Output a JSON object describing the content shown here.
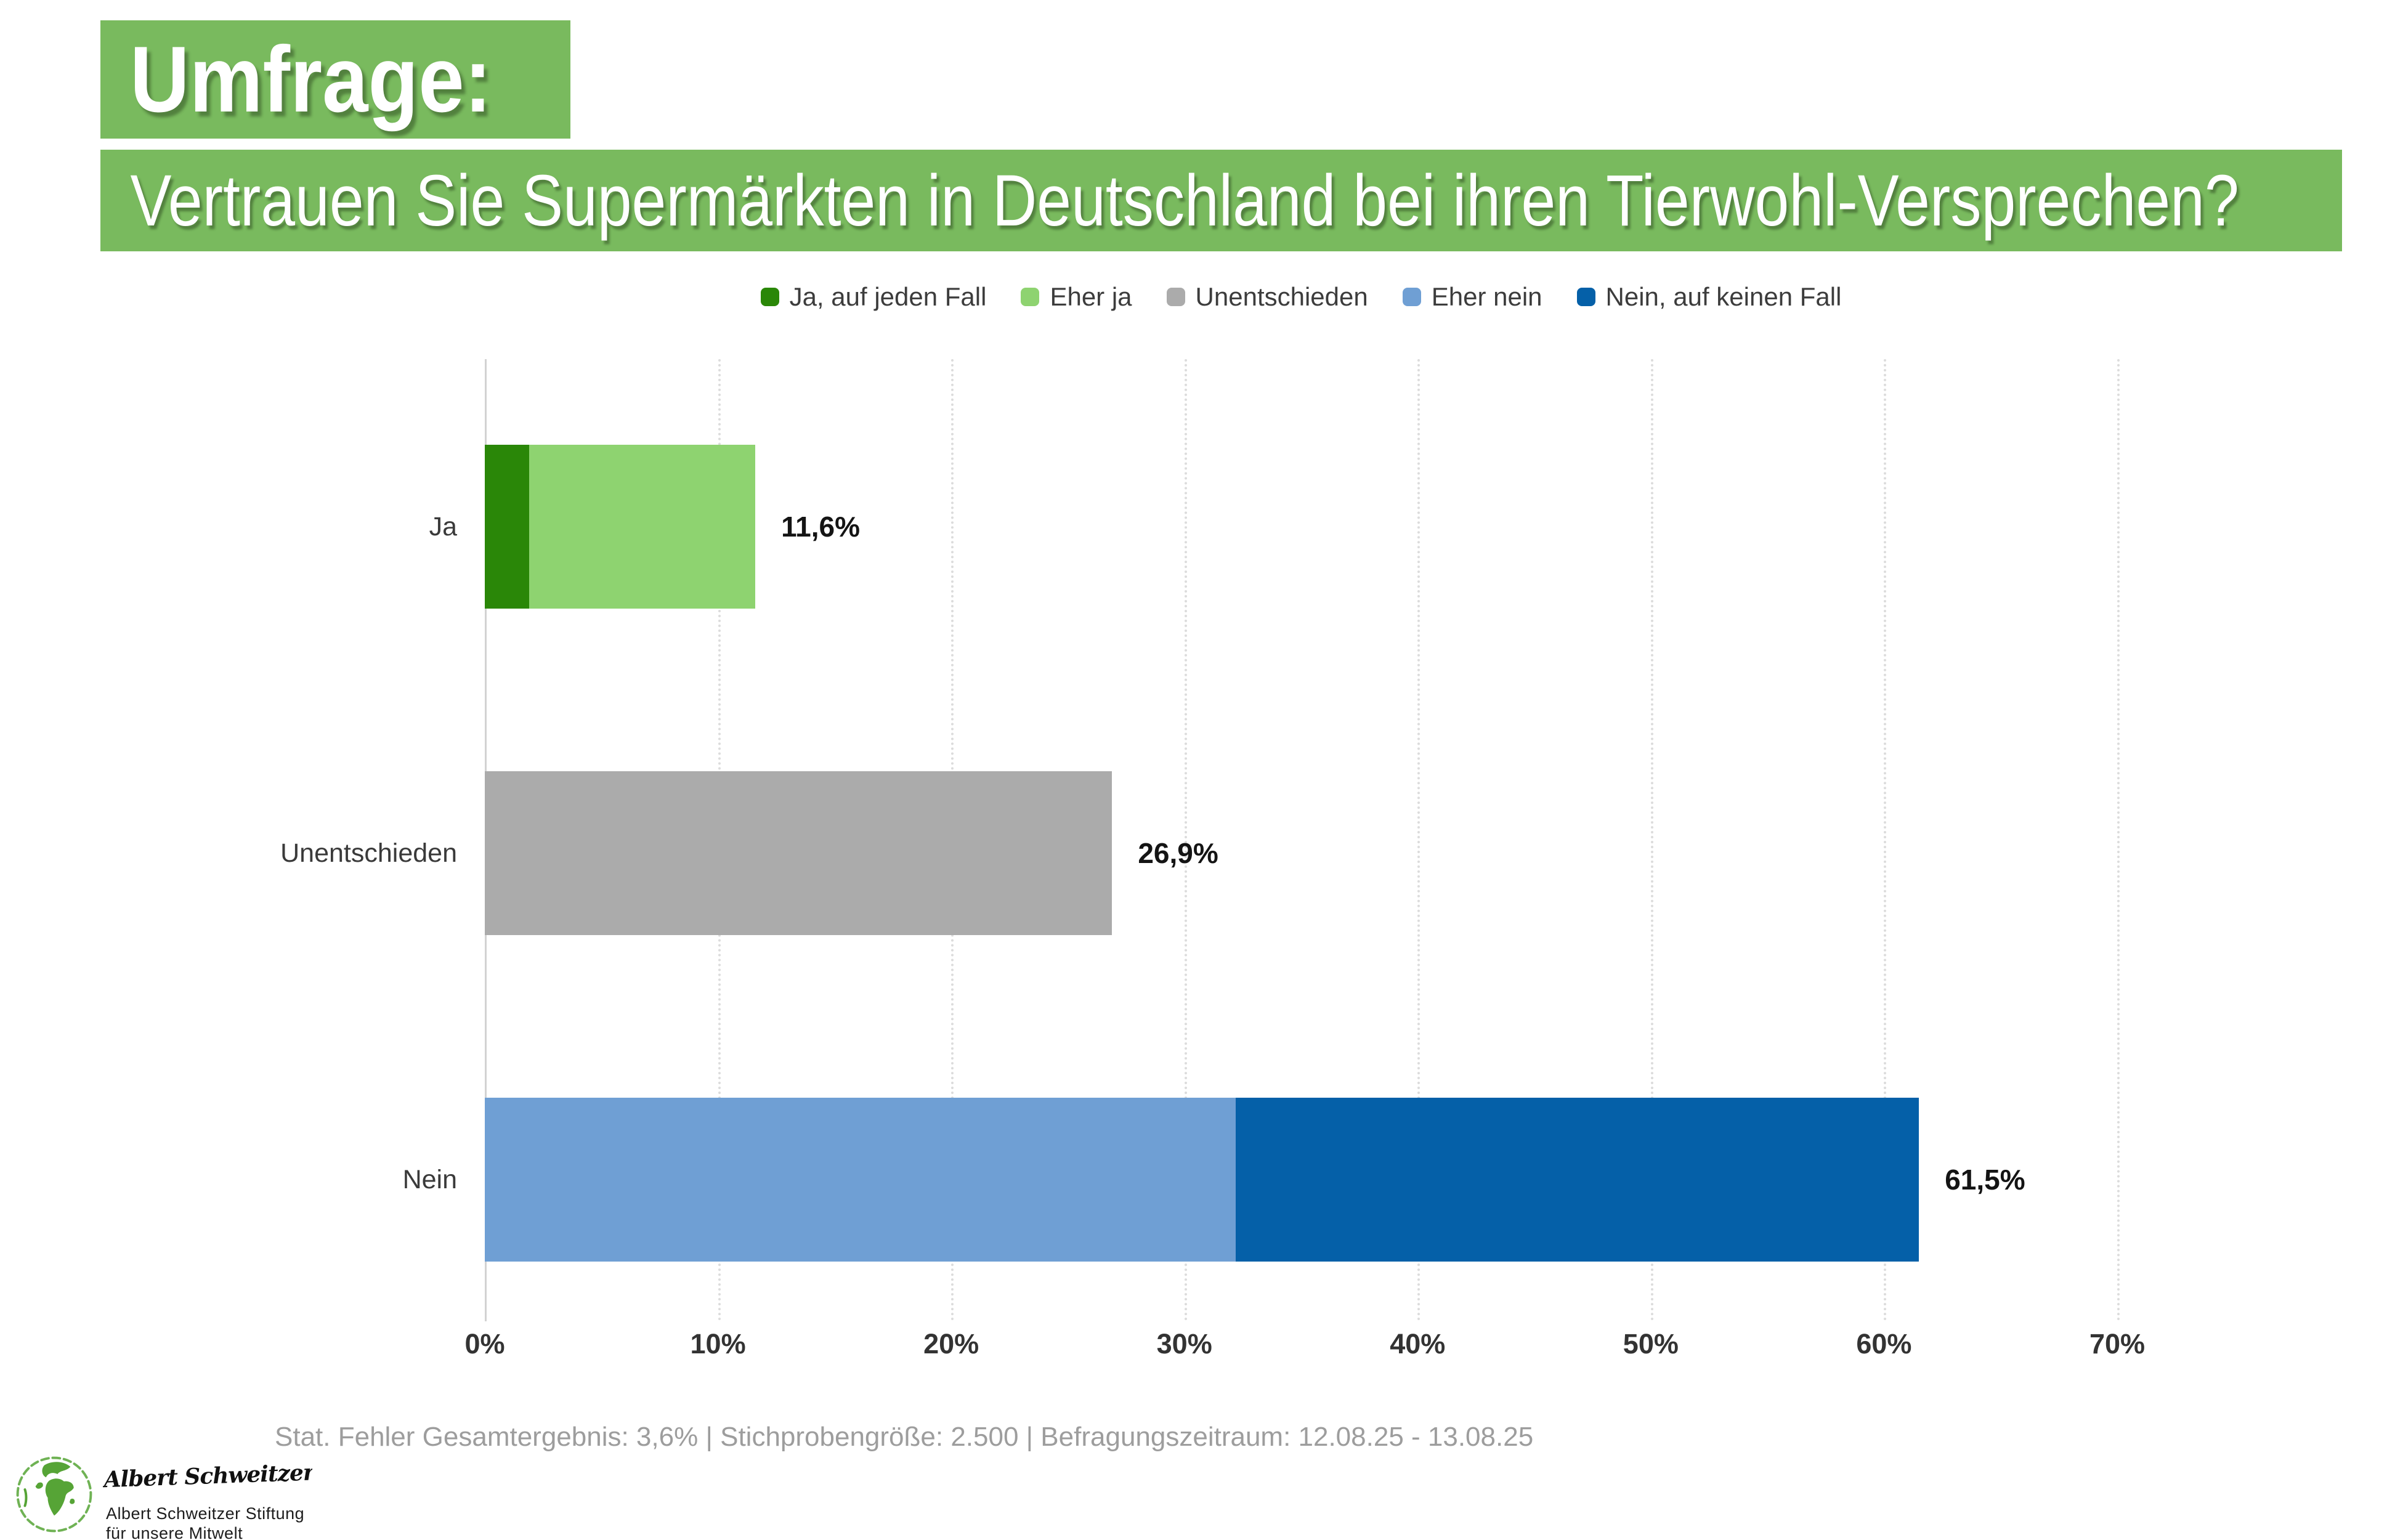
{
  "header": {
    "kicker": "Umfrage:",
    "title": "Vertrauen Sie Supermärkten in Deutschland bei ihren Tierwohl-Versprechen?",
    "background_color": "#79ba5e",
    "text_color": "#ffffff"
  },
  "chart_data": {
    "type": "bar",
    "orientation": "horizontal",
    "title": "Vertrauen Sie Supermärkten in Deutschland bei ihren Tierwohl-Versprechen?",
    "categories": [
      "Ja",
      "Unentschieden",
      "Nein"
    ],
    "series": [
      {
        "name": "Ja, auf jeden Fall",
        "color": "#2a8708",
        "values": [
          1.9,
          0,
          0
        ]
      },
      {
        "name": "Eher ja",
        "color": "#8ed370",
        "values": [
          9.7,
          0,
          0
        ]
      },
      {
        "name": "Unentschieden",
        "color": "#ababab",
        "values": [
          0,
          26.9,
          0
        ]
      },
      {
        "name": "Eher nein",
        "color": "#6f9fd4",
        "values": [
          0,
          0,
          32.2
        ]
      },
      {
        "name": "Nein, auf keinen Fall",
        "color": "#0560a8",
        "values": [
          0,
          0,
          29.3
        ]
      }
    ],
    "totals": [
      11.6,
      26.9,
      61.5
    ],
    "totals_labels": [
      "11,6%",
      "26,9%",
      "61,5%"
    ],
    "x_ticks": [
      "0%",
      "10%",
      "20%",
      "30%",
      "40%",
      "50%",
      "60%",
      "70%"
    ],
    "xlim": [
      0,
      70
    ],
    "xlabel": "",
    "ylabel": "",
    "grid": "vertical-dotted",
    "legend_position": "top-center"
  },
  "footer": {
    "note": "Stat. Fehler Gesamtergebnis: 3,6% | Stichprobengröße: 2.500 | Befragungszeitraum: 12.08.25 - 13.08.25"
  },
  "logo": {
    "signature": "Albert Schweitzer",
    "line1": "Albert Schweitzer Stiftung",
    "line2": "für unsere Mitwelt",
    "globe_color": "#56a436"
  }
}
